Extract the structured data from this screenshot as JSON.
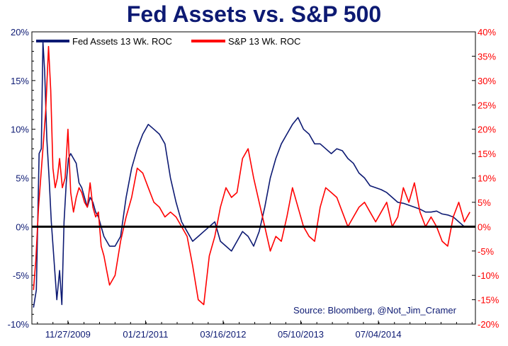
{
  "chart_data": {
    "type": "line",
    "title": "Fed Assets vs. S&P 500",
    "source": "Source: Bloomberg, @Not_Jim_Cramer",
    "x_tick_labels": [
      "11/27/2009",
      "01/21/2011",
      "03/16/2012",
      "05/10/2013",
      "07/04/2014"
    ],
    "x_tick_positions": [
      6.5,
      20.5,
      34.5,
      48.5,
      62.5
    ],
    "x_range": [
      0,
      80
    ],
    "left_axis": {
      "ylim": [
        -10,
        20
      ],
      "ticks": [
        "-10%",
        "-5%",
        "0%",
        "5%",
        "10%",
        "15%",
        "20%"
      ],
      "tick_values": [
        -10,
        -5,
        0,
        5,
        10,
        15,
        20
      ]
    },
    "right_axis": {
      "ylim": [
        -20,
        40
      ],
      "ticks": [
        "-20%",
        "-15%",
        "-10%",
        "-5%",
        "0%",
        "5%",
        "10%",
        "15%",
        "20%",
        "25%",
        "30%",
        "35%",
        "40%"
      ],
      "tick_values": [
        -20,
        -15,
        -10,
        -5,
        0,
        5,
        10,
        15,
        20,
        25,
        30,
        35,
        40
      ]
    },
    "zero_line": 0,
    "colors": {
      "fed": "#0d1a73",
      "sp": "#ff0000",
      "title": "#0d1a73",
      "zero": "#000000"
    },
    "series": [
      {
        "name": "Fed Assets 13 Wk. ROC",
        "axis": "left",
        "color": "#0d1a73",
        "x": [
          0.3,
          0.8,
          1.3,
          1.7,
          2.0,
          2.3,
          2.7,
          3.1,
          3.5,
          4.0,
          4.5,
          5.0,
          5.4,
          5.8,
          6.2,
          6.6,
          7.0,
          7.5,
          8.0,
          8.5,
          9.0,
          9.5,
          10,
          10.5,
          11,
          11.5,
          12,
          13,
          14,
          15,
          16,
          17,
          18,
          19,
          20,
          21,
          22,
          23,
          24,
          25,
          26,
          27,
          28,
          29,
          30,
          31,
          32,
          33,
          34,
          35,
          36,
          37,
          38,
          39,
          40,
          41,
          42,
          43,
          44,
          45,
          46,
          47,
          48,
          49,
          50,
          51,
          52,
          53,
          54,
          55,
          56,
          57,
          58,
          59,
          60,
          61,
          62,
          63,
          64,
          65,
          66,
          67,
          68,
          69,
          70,
          71,
          72,
          73,
          74,
          75,
          76,
          77,
          78
        ],
        "values": [
          -8.3,
          -6.5,
          7.5,
          8.0,
          19.0,
          16.0,
          9.0,
          5.0,
          0.5,
          -3.5,
          -7.5,
          -4.5,
          -8.0,
          0.5,
          4.5,
          7.0,
          7.5,
          7.0,
          6.5,
          4.5,
          4.0,
          3.0,
          2.0,
          3.0,
          2.5,
          1.5,
          1.0,
          -1.0,
          -2.0,
          -2.0,
          -1.0,
          3.0,
          6.0,
          8.0,
          9.5,
          10.5,
          10.0,
          9.5,
          8.5,
          5.0,
          2.5,
          0.5,
          -0.5,
          -1.5,
          -1.0,
          -0.5,
          0.0,
          0.5,
          -1.5,
          -2.0,
          -2.5,
          -1.5,
          -0.5,
          -1.0,
          -2.0,
          -0.5,
          2.0,
          5.0,
          7.0,
          8.5,
          9.5,
          10.5,
          11.2,
          10.0,
          9.5,
          8.5,
          8.5,
          8.0,
          7.5,
          8.0,
          7.8,
          7.0,
          6.5,
          5.5,
          5.0,
          4.2,
          4.0,
          3.8,
          3.5,
          3.0,
          2.5,
          2.4,
          2.2,
          2.0,
          1.8,
          1.5,
          1.5,
          1.6,
          1.3,
          1.2,
          1.0,
          0.5,
          0.0
        ]
      },
      {
        "name": "S&P 13 Wk. ROC",
        "axis": "right",
        "color": "#ff0000",
        "x": [
          0.3,
          0.7,
          1.2,
          1.6,
          2.0,
          2.5,
          3.0,
          3.4,
          3.8,
          4.2,
          4.6,
          5.0,
          5.5,
          6.0,
          6.5,
          7.0,
          7.5,
          8.0,
          8.5,
          9.0,
          9.5,
          10,
          10.5,
          11,
          11.5,
          12,
          12.5,
          13,
          13.5,
          14,
          15,
          16,
          17,
          18,
          19,
          20,
          21,
          22,
          23,
          24,
          25,
          26,
          27,
          28,
          29,
          30,
          31,
          32,
          33,
          34,
          35,
          36,
          37,
          38,
          39,
          40,
          41,
          42,
          43,
          44,
          45,
          46,
          47,
          48,
          49,
          50,
          51,
          52,
          53,
          54,
          55,
          56,
          57,
          58,
          59,
          60,
          61,
          62,
          63,
          64,
          65,
          66,
          67,
          68,
          69,
          70,
          71,
          72,
          73,
          74,
          75,
          76,
          77,
          78,
          79
        ],
        "values": [
          -13.0,
          -7.0,
          4.0,
          10.0,
          16.0,
          24.0,
          37.0,
          28.0,
          12.0,
          8.0,
          10.0,
          14.0,
          8.0,
          10.0,
          20.0,
          7.0,
          3.0,
          6.0,
          8.0,
          7.0,
          5.0,
          4.0,
          9.0,
          4.0,
          2.0,
          3.0,
          -4.0,
          -6.0,
          -9.0,
          -12.0,
          -10.0,
          -3.0,
          2.0,
          6.0,
          12.0,
          11.0,
          8.0,
          5.0,
          4.0,
          2.0,
          3.0,
          2.0,
          0.0,
          -2.0,
          -8.0,
          -15.0,
          -16.0,
          -6.0,
          -2.0,
          4.0,
          8.0,
          6.0,
          7.0,
          14.0,
          16.0,
          10.0,
          5.0,
          0.0,
          -5.0,
          -2.0,
          -3.0,
          2.0,
          8.0,
          4.0,
          0.0,
          -2.0,
          -3.0,
          4.0,
          8.0,
          7.0,
          6.0,
          3.0,
          0.0,
          2.0,
          4.0,
          5.0,
          3.0,
          1.0,
          3.0,
          5.0,
          0.0,
          2.0,
          8.0,
          5.0,
          9.0,
          3.0,
          0.0,
          2.0,
          0.0,
          -3.0,
          -4.0,
          2.0,
          5.0,
          1.0,
          3.0
        ]
      }
    ]
  },
  "legend": {
    "fed_label": "Fed Assets 13 Wk. ROC",
    "sp_label": "S&P 13 Wk. ROC"
  }
}
